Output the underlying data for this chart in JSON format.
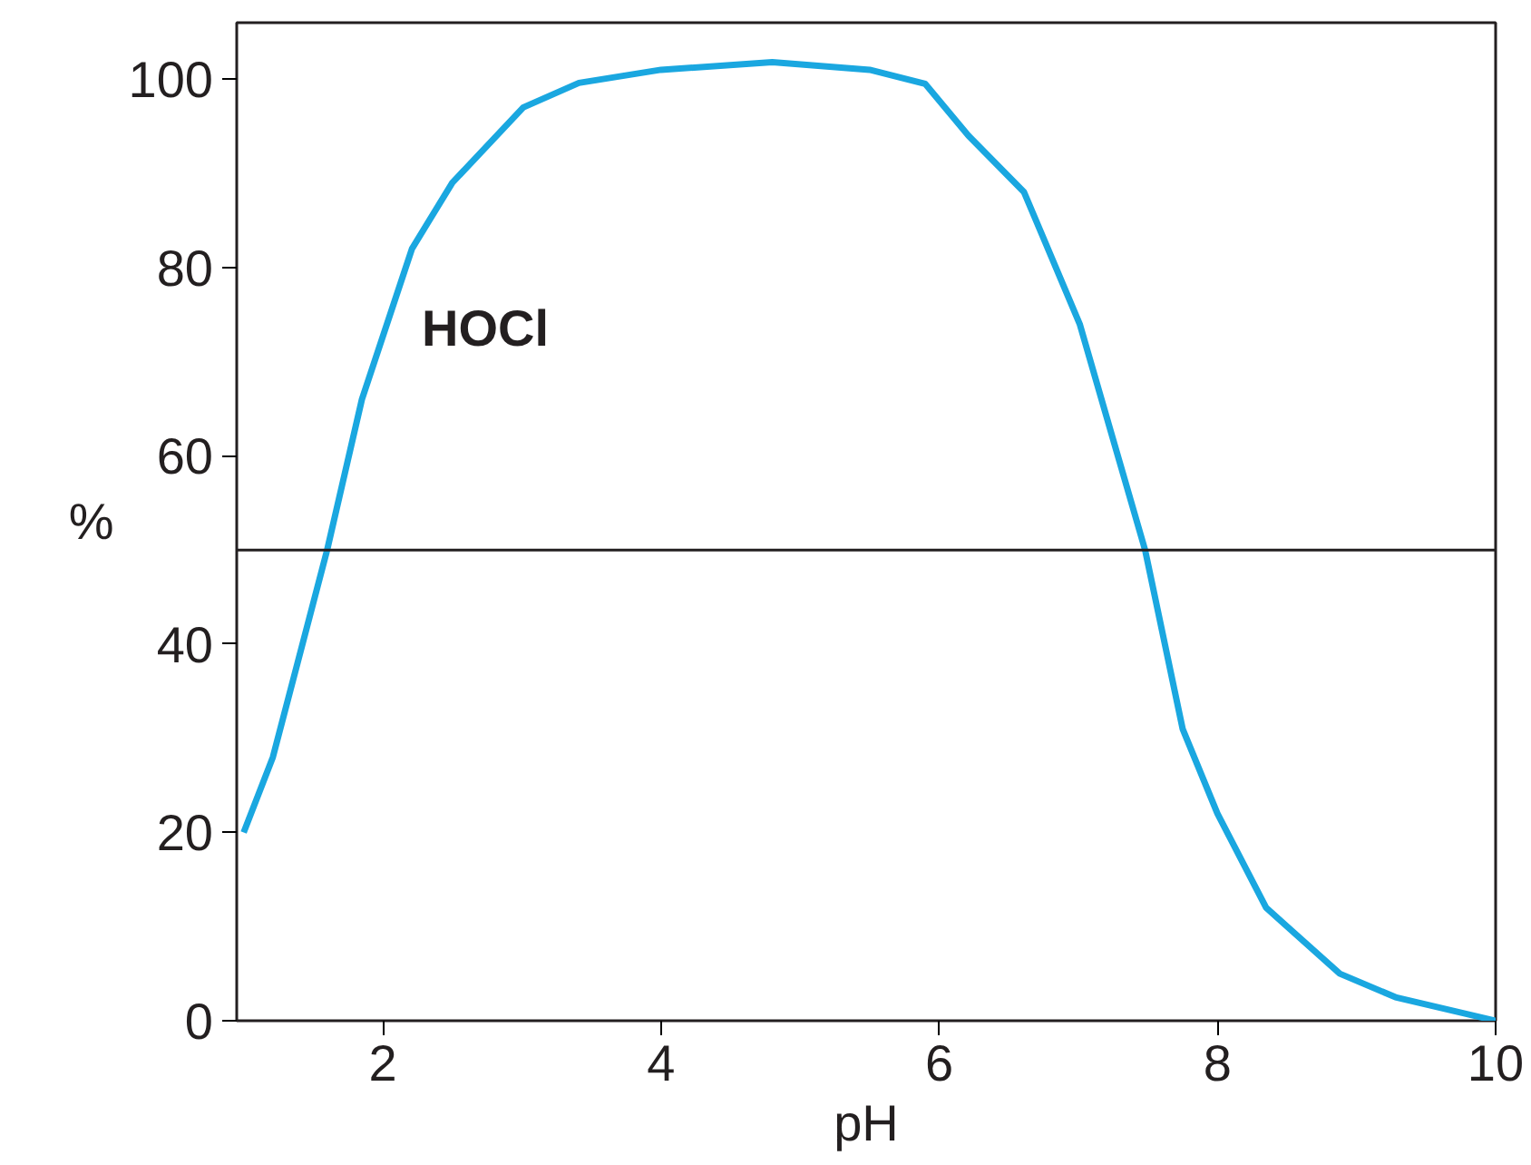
{
  "chart_data": {
    "type": "line",
    "xlabel": "pH",
    "ylabel": "%",
    "xlim": [
      0.95,
      10
    ],
    "ylim": [
      0,
      106
    ],
    "xticks": [
      2,
      4,
      6,
      8,
      10
    ],
    "yticks": [
      0,
      20,
      40,
      60,
      80,
      100
    ],
    "grid": false,
    "marker": "none",
    "line_style": "solid",
    "series": [
      {
        "name": "HOCl",
        "color": "#1aa7e0",
        "x": [
          1,
          1.21,
          1.6,
          1.85,
          2.21,
          2.5,
          3.01,
          3.41,
          4,
          4.8,
          5.5,
          5.9,
          6.21,
          6.61,
          7.01,
          7.48,
          7.75,
          8,
          8.35,
          8.88,
          9.28,
          10
        ],
        "values": [
          20,
          28,
          50,
          66,
          82,
          89,
          97,
          99.6,
          101,
          101.8,
          101,
          99.5,
          94,
          88,
          74,
          50,
          31,
          22,
          12,
          5,
          2.5,
          0
        ]
      }
    ],
    "ref_lines": [
      {
        "axis": "y",
        "value": 50,
        "color": "#231f20"
      }
    ]
  }
}
